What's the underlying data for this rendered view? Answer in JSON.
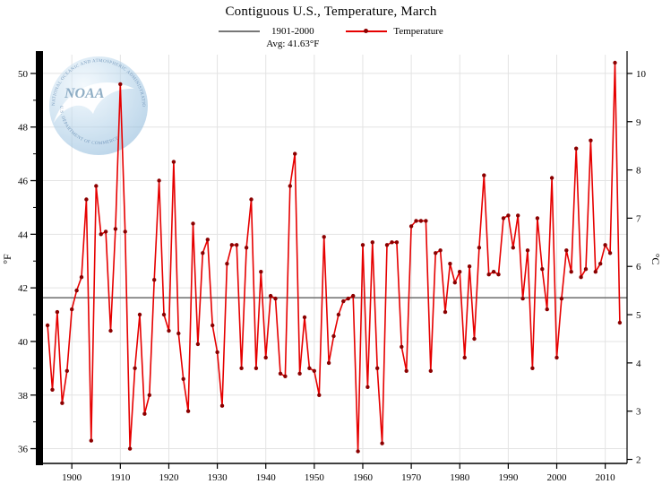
{
  "header": {
    "title": "Contiguous U.S., Temperature, March"
  },
  "legend": {
    "avg_label_line1": "1901-2000",
    "avg_label_line2": "Avg: 41.63°F",
    "series_label": "Temperature"
  },
  "axes": {
    "left_label": "°F",
    "right_label": "°C",
    "x_ticks": [
      1900,
      1910,
      1920,
      1930,
      1940,
      1950,
      1960,
      1970,
      1980,
      1990,
      2000,
      2010
    ],
    "y_ticks_f": [
      36,
      38,
      40,
      42,
      44,
      46,
      48,
      50
    ],
    "y_ticks_c": [
      2,
      3,
      4,
      5,
      6,
      7,
      8,
      9,
      10
    ]
  },
  "watermark": {
    "wordmark": "NOAA",
    "ring_top": "NATIONAL OCEANIC AND ATMOSPHERIC ADMINISTRATION",
    "ring_bottom": "U.S. DEPARTMENT OF COMMERCE"
  },
  "chart_data": {
    "type": "line",
    "title": "Contiguous U.S., Temperature, March",
    "xlabel": "",
    "ylabel_left": "°F",
    "ylabel_right": "°C",
    "xlim": [
      1893.5,
      2014.5
    ],
    "ylim_f": [
      35.45,
      50.7
    ],
    "ylim_c": [
      2,
      10.4
    ],
    "grid": true,
    "legend_position": "top",
    "baseline": {
      "label": "1901-2000",
      "value_f": 41.63,
      "text": "Avg: 41.63°F",
      "color": "#777777"
    },
    "x": [
      1895,
      1896,
      1897,
      1898,
      1899,
      1900,
      1901,
      1902,
      1903,
      1904,
      1905,
      1906,
      1907,
      1908,
      1909,
      1910,
      1911,
      1912,
      1913,
      1914,
      1915,
      1916,
      1917,
      1918,
      1919,
      1920,
      1921,
      1922,
      1923,
      1924,
      1925,
      1926,
      1927,
      1928,
      1929,
      1930,
      1931,
      1932,
      1933,
      1934,
      1935,
      1936,
      1937,
      1938,
      1939,
      1940,
      1941,
      1942,
      1943,
      1944,
      1945,
      1946,
      1947,
      1948,
      1949,
      1950,
      1951,
      1952,
      1953,
      1954,
      1955,
      1956,
      1957,
      1958,
      1959,
      1960,
      1961,
      1962,
      1963,
      1964,
      1965,
      1966,
      1967,
      1968,
      1969,
      1970,
      1971,
      1972,
      1973,
      1974,
      1975,
      1976,
      1977,
      1978,
      1979,
      1980,
      1981,
      1982,
      1983,
      1984,
      1985,
      1986,
      1987,
      1988,
      1989,
      1990,
      1991,
      1992,
      1993,
      1994,
      1995,
      1996,
      1997,
      1998,
      1999,
      2000,
      2001,
      2002,
      2003,
      2004,
      2005,
      2006,
      2007,
      2008,
      2009,
      2010,
      2011,
      2012,
      2013
    ],
    "series": [
      {
        "name": "Temperature",
        "color": "#e60000",
        "marker_color": "#8b0000",
        "values": [
          40.6,
          38.2,
          41.1,
          37.7,
          38.9,
          41.2,
          41.9,
          42.4,
          45.3,
          36.3,
          45.8,
          44.0,
          44.1,
          40.4,
          44.2,
          49.6,
          44.1,
          36.0,
          39.0,
          41.0,
          37.3,
          38.0,
          42.3,
          46.0,
          41.0,
          40.4,
          46.7,
          40.3,
          38.6,
          37.4,
          44.4,
          39.9,
          43.3,
          43.8,
          40.6,
          39.6,
          37.6,
          42.9,
          43.6,
          43.6,
          39.0,
          43.5,
          45.3,
          39.0,
          42.6,
          39.4,
          41.7,
          41.6,
          38.8,
          38.7,
          45.8,
          47.0,
          38.8,
          40.9,
          39.0,
          38.9,
          38.0,
          43.9,
          39.2,
          40.2,
          41.0,
          41.5,
          41.6,
          41.7,
          35.9,
          43.6,
          38.3,
          43.7,
          39.0,
          36.2,
          43.6,
          43.7,
          43.7,
          39.8,
          38.9,
          44.3,
          44.5,
          44.5,
          44.5,
          38.9,
          43.3,
          43.4,
          41.1,
          42.9,
          42.2,
          42.6,
          39.4,
          42.8,
          40.1,
          43.5,
          46.2,
          42.5,
          42.6,
          42.5,
          44.6,
          44.7,
          43.5,
          44.7,
          41.6,
          43.4,
          39.0,
          44.6,
          42.7,
          41.2,
          46.1,
          39.4,
          41.6,
          43.4,
          42.6,
          47.2,
          42.4,
          42.7,
          47.5,
          42.6,
          42.9,
          43.6,
          43.3,
          50.4,
          40.7
        ]
      }
    ]
  }
}
